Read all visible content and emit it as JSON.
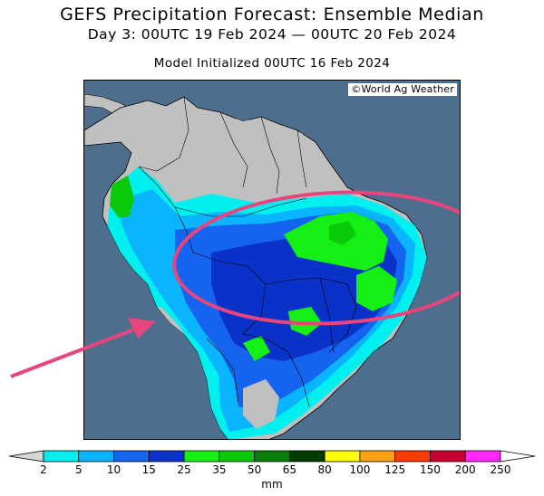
{
  "title": {
    "line1": "GEFS Precipitation Forecast: Ensemble Median",
    "line2": "Day 3: 00UTC 19 Feb 2024 — 00UTC 20 Feb 2024"
  },
  "initialized": "Model Initialized 00UTC 16 Feb 2024",
  "credit": "©World Ag Weather",
  "legend": {
    "units": "mm",
    "levels": [
      "2",
      "5",
      "10",
      "15",
      "25",
      "35",
      "50",
      "65",
      "80",
      "100",
      "125",
      "150",
      "200",
      "250"
    ],
    "colors": [
      "#d6d6d6",
      "#00f0f0",
      "#0ab4ff",
      "#1464f0",
      "#0a32c8",
      "#14f014",
      "#0ac80a",
      "#0a7d0a",
      "#003c00",
      "#ffff00",
      "#ffa014",
      "#ff3c00",
      "#c80032",
      "#ff28ff",
      "#9650c8"
    ]
  },
  "colors": {
    "ocean": "#4e6e8e",
    "land_dry": "#c0c0c0",
    "annotation": "#e8457e"
  },
  "annotations": {
    "ellipse": "highlight ring over central/eastern Brazil",
    "arrow": "pink arrow pointing toward western edge of highlighted region"
  }
}
